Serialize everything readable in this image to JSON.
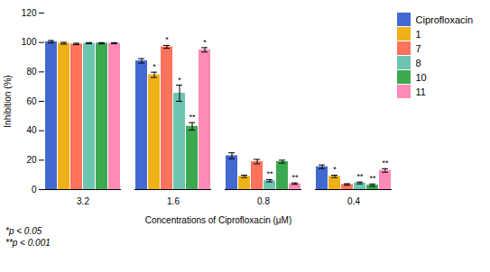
{
  "chart_data": {
    "type": "bar",
    "categories": [
      "3.2",
      "1.6",
      "0.8",
      "0.4"
    ],
    "series": [
      {
        "name": "Ciprofloxacin",
        "values": [
          100.5,
          87.5,
          23.0,
          15.5
        ],
        "errors": [
          0.8,
          1.5,
          2.0,
          1.2
        ]
      },
      {
        "name": "1",
        "values": [
          99.5,
          78.0,
          9.0,
          9.0
        ],
        "errors": [
          0.6,
          1.8,
          0.8,
          0.8
        ]
      },
      {
        "name": "7",
        "values": [
          99.0,
          97.0,
          19.0,
          3.5
        ],
        "errors": [
          0.5,
          1.0,
          1.5,
          0.5
        ]
      },
      {
        "name": "8",
        "values": [
          99.5,
          65.5,
          6.0,
          4.5
        ],
        "errors": [
          0.4,
          5.5,
          0.8,
          0.6
        ]
      },
      {
        "name": "10",
        "values": [
          99.5,
          43.0,
          19.0,
          3.0
        ],
        "errors": [
          0.4,
          2.5,
          1.0,
          0.8
        ]
      },
      {
        "name": "11",
        "values": [
          99.5,
          95.0,
          4.0,
          13.0
        ],
        "errors": [
          0.4,
          1.5,
          0.5,
          1.2
        ]
      }
    ],
    "annotations": [
      {
        "category": "1.6",
        "series": "1",
        "text": "*"
      },
      {
        "category": "1.6",
        "series": "7",
        "text": "*"
      },
      {
        "category": "1.6",
        "series": "8",
        "text": "*"
      },
      {
        "category": "1.6",
        "series": "10",
        "text": "**"
      },
      {
        "category": "1.6",
        "series": "11",
        "text": "*"
      },
      {
        "category": "0.8",
        "series": "8",
        "text": "**"
      },
      {
        "category": "0.8",
        "series": "11",
        "text": "**"
      },
      {
        "category": "0.4",
        "series": "1",
        "text": "*"
      },
      {
        "category": "0.4",
        "series": "8",
        "text": "**"
      },
      {
        "category": "0.4",
        "series": "10",
        "text": "**"
      },
      {
        "category": "0.4",
        "series": "11",
        "text": "**"
      }
    ],
    "ylabel": "Inhibition (%)",
    "xlabel": "Concentrations of Ciprofloxacin (μM)",
    "ylim": [
      0,
      120
    ],
    "yticks": [
      0,
      20,
      40,
      60,
      80,
      100,
      120
    ],
    "footnotes": [
      "*p < 0.05",
      "**p < 0.001"
    ],
    "grid": false,
    "legend": "right"
  }
}
